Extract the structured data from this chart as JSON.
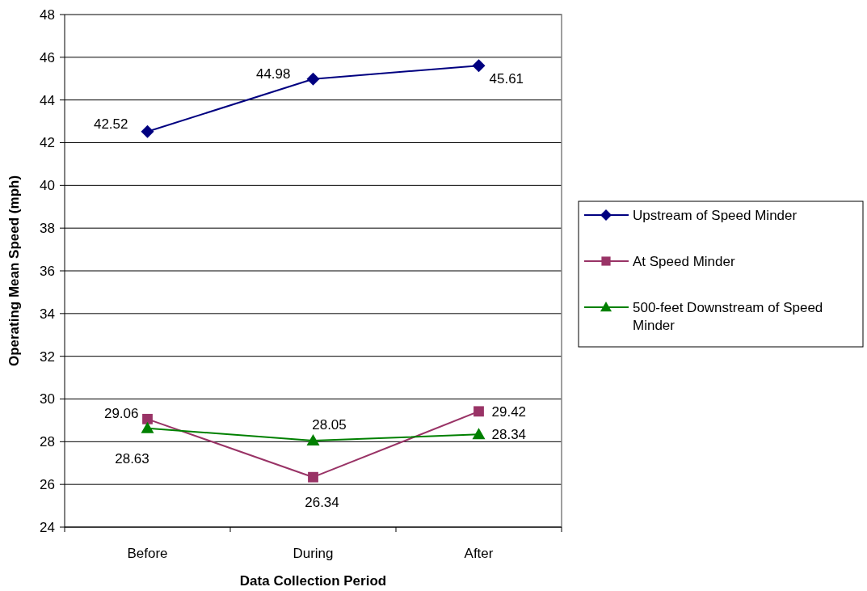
{
  "chart_data": {
    "type": "line",
    "xlabel": "Data Collection Period",
    "ylabel": "Operating Mean Speed (mph)",
    "categories": [
      "Before",
      "During",
      "After"
    ],
    "series": [
      {
        "name": "Upstream of Speed Minder",
        "color": "#000080",
        "marker": "diamond",
        "values": [
          42.52,
          44.98,
          45.61
        ]
      },
      {
        "name": "At Speed Minder",
        "color": "#993366",
        "marker": "square",
        "values": [
          29.06,
          26.34,
          29.42
        ]
      },
      {
        "name": "500-feet Downstream of Speed Minder",
        "color": "#008000",
        "marker": "triangle",
        "values": [
          28.63,
          28.05,
          28.34
        ]
      }
    ],
    "ylim": [
      24,
      48
    ],
    "yticks": [
      24,
      26,
      28,
      30,
      32,
      34,
      36,
      38,
      40,
      42,
      44,
      46,
      48
    ],
    "grid": "y",
    "legend": "right",
    "data_labels": true
  }
}
